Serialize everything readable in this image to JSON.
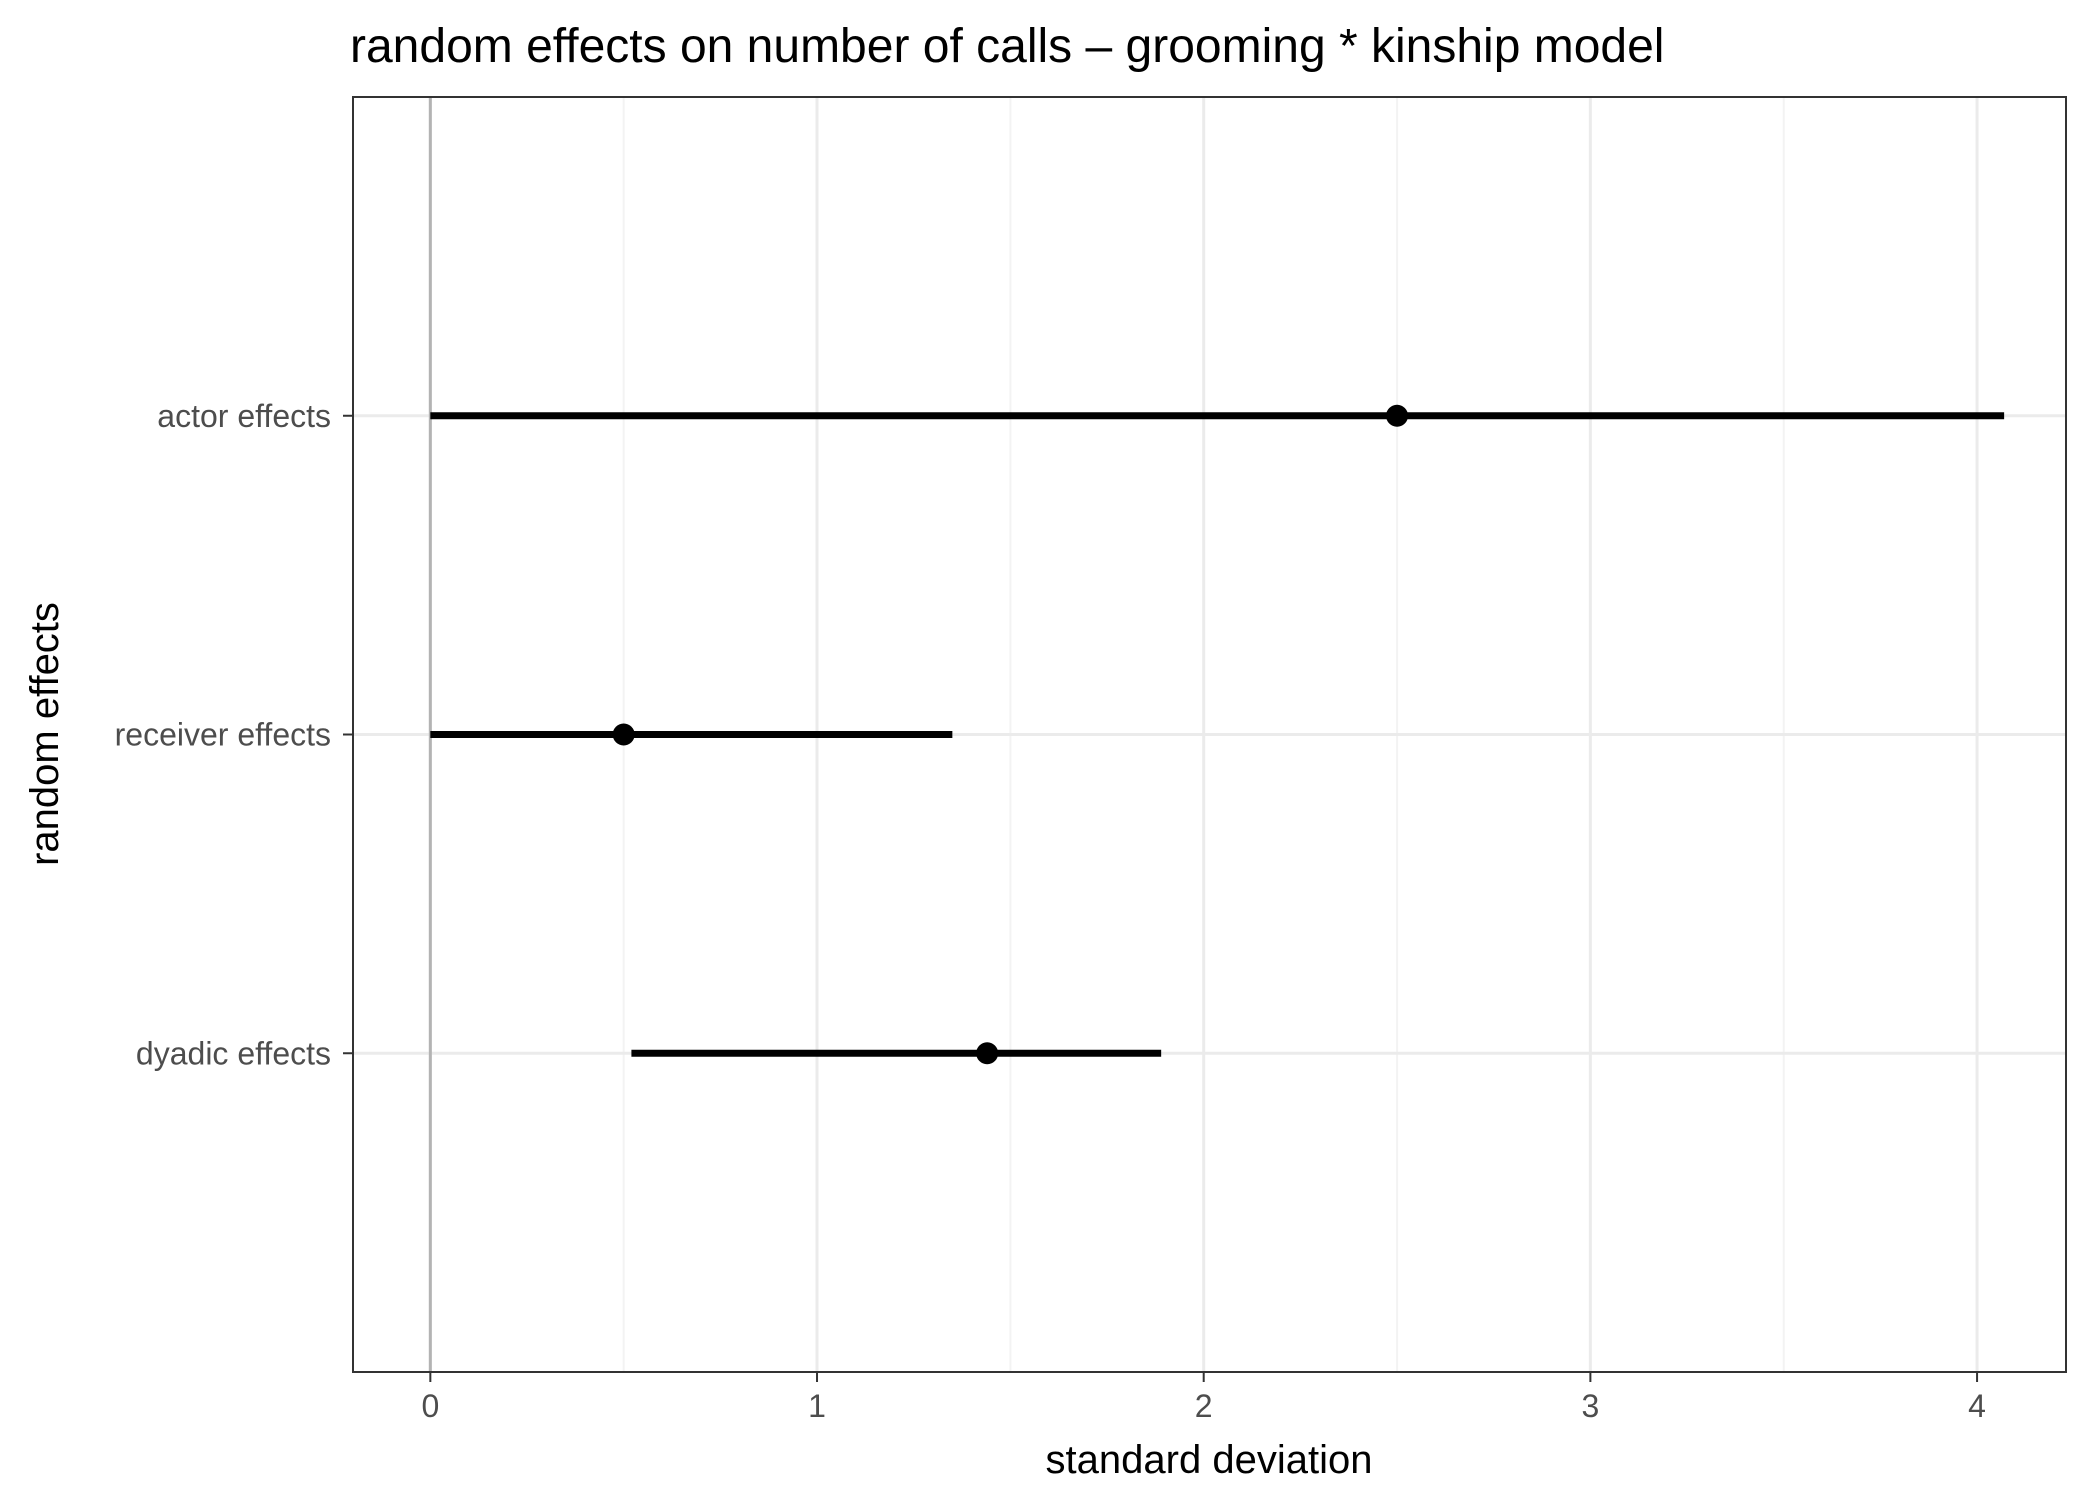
{
  "chart_data": {
    "type": "pointrange",
    "orientation": "horizontal",
    "title": "random effects on number of calls – grooming * kinship model",
    "xlabel": "standard deviation",
    "ylabel": "random effects",
    "xlim": [
      -0.2,
      4.23
    ],
    "x_ticks": [
      0,
      1,
      2,
      3,
      4
    ],
    "x_tick_labels": [
      "0",
      "1",
      "2",
      "3",
      "4"
    ],
    "reference_line_x": 0,
    "categories": [
      "actor effects",
      "receiver effects",
      "dyadic effects"
    ],
    "series": [
      {
        "points": [
          {
            "category": "actor effects",
            "estimate": 2.5,
            "lower": 0.0,
            "upper": 4.07
          },
          {
            "category": "receiver effects",
            "estimate": 0.5,
            "lower": 0.0,
            "upper": 1.35
          },
          {
            "category": "dyadic effects",
            "estimate": 1.44,
            "lower": 0.52,
            "upper": 1.89
          }
        ]
      }
    ],
    "grid": true,
    "legend": "none",
    "colors": {
      "mark": "#000000",
      "grid_major": "#ebebeb",
      "grid_minor": "#f3f3f3",
      "reference_line": "#b3b3b3",
      "panel_border": "#333333",
      "tick_text": "#4d4d4d"
    }
  }
}
